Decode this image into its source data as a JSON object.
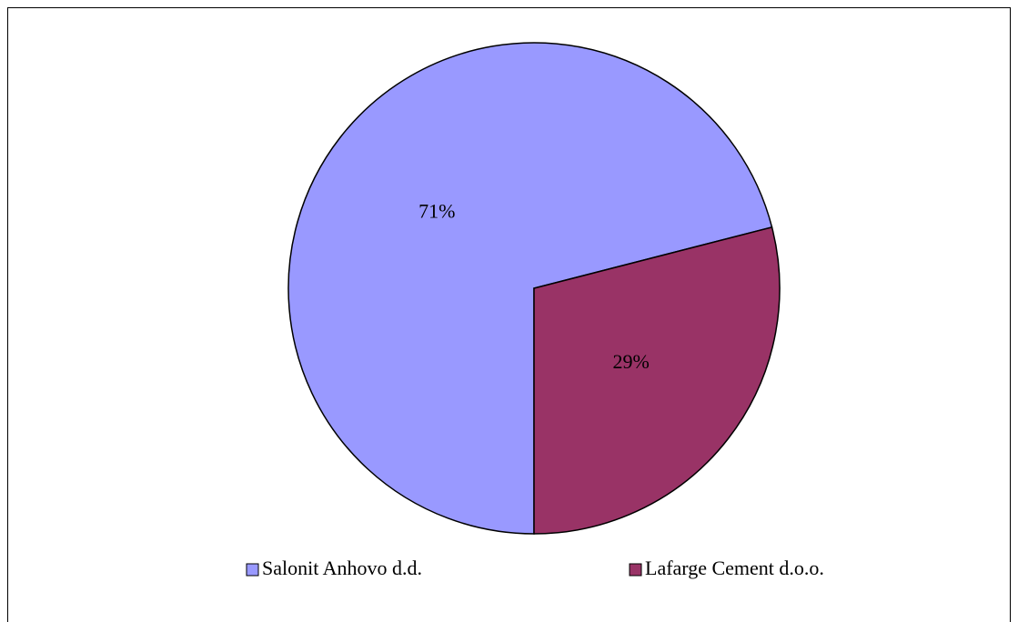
{
  "chart_data": {
    "type": "pie",
    "categories": [
      "Salonit Anhovo d.d.",
      "Lafarge Cement d.o.o."
    ],
    "values": [
      71,
      29
    ],
    "value_labels": [
      "71%",
      "29%"
    ],
    "colors": [
      "#9999ff",
      "#993366"
    ],
    "legend": "bottom"
  }
}
